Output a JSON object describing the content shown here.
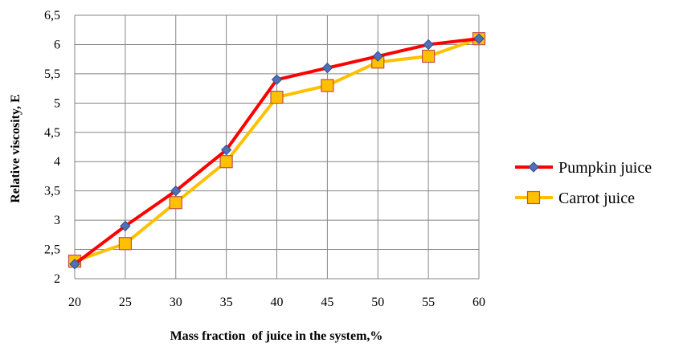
{
  "chart_data": {
    "type": "line",
    "title": "",
    "xlabel": "Mass fraction  of juice in the system,%",
    "ylabel": "Relative viscosity, E",
    "x": [
      20,
      25,
      30,
      35,
      40,
      45,
      50,
      55,
      60
    ],
    "x_tick_labels": [
      "20",
      "25",
      "30",
      "35",
      "40",
      "45",
      "50",
      "55",
      "60"
    ],
    "y_tick_labels": [
      "2",
      "2,5",
      "3",
      "3,5",
      "4",
      "4,5",
      "5",
      "5,5",
      "6",
      "6,5"
    ],
    "ylim": [
      2,
      6.5
    ],
    "grid": true,
    "legend_position": "right",
    "series": [
      {
        "name": "Pumpkin juice",
        "color": "#ff0000",
        "marker_color": "#4f6fb6",
        "marker": "diamond",
        "values": [
          2.25,
          2.9,
          3.5,
          4.2,
          5.4,
          5.6,
          5.8,
          6.0,
          6.1
        ]
      },
      {
        "name": "Carrot juice",
        "color": "#ffc000",
        "marker_color": "#ffc000",
        "marker": "square",
        "values": [
          2.3,
          2.6,
          3.3,
          4.0,
          5.1,
          5.3,
          5.7,
          5.8,
          6.1
        ]
      }
    ]
  }
}
